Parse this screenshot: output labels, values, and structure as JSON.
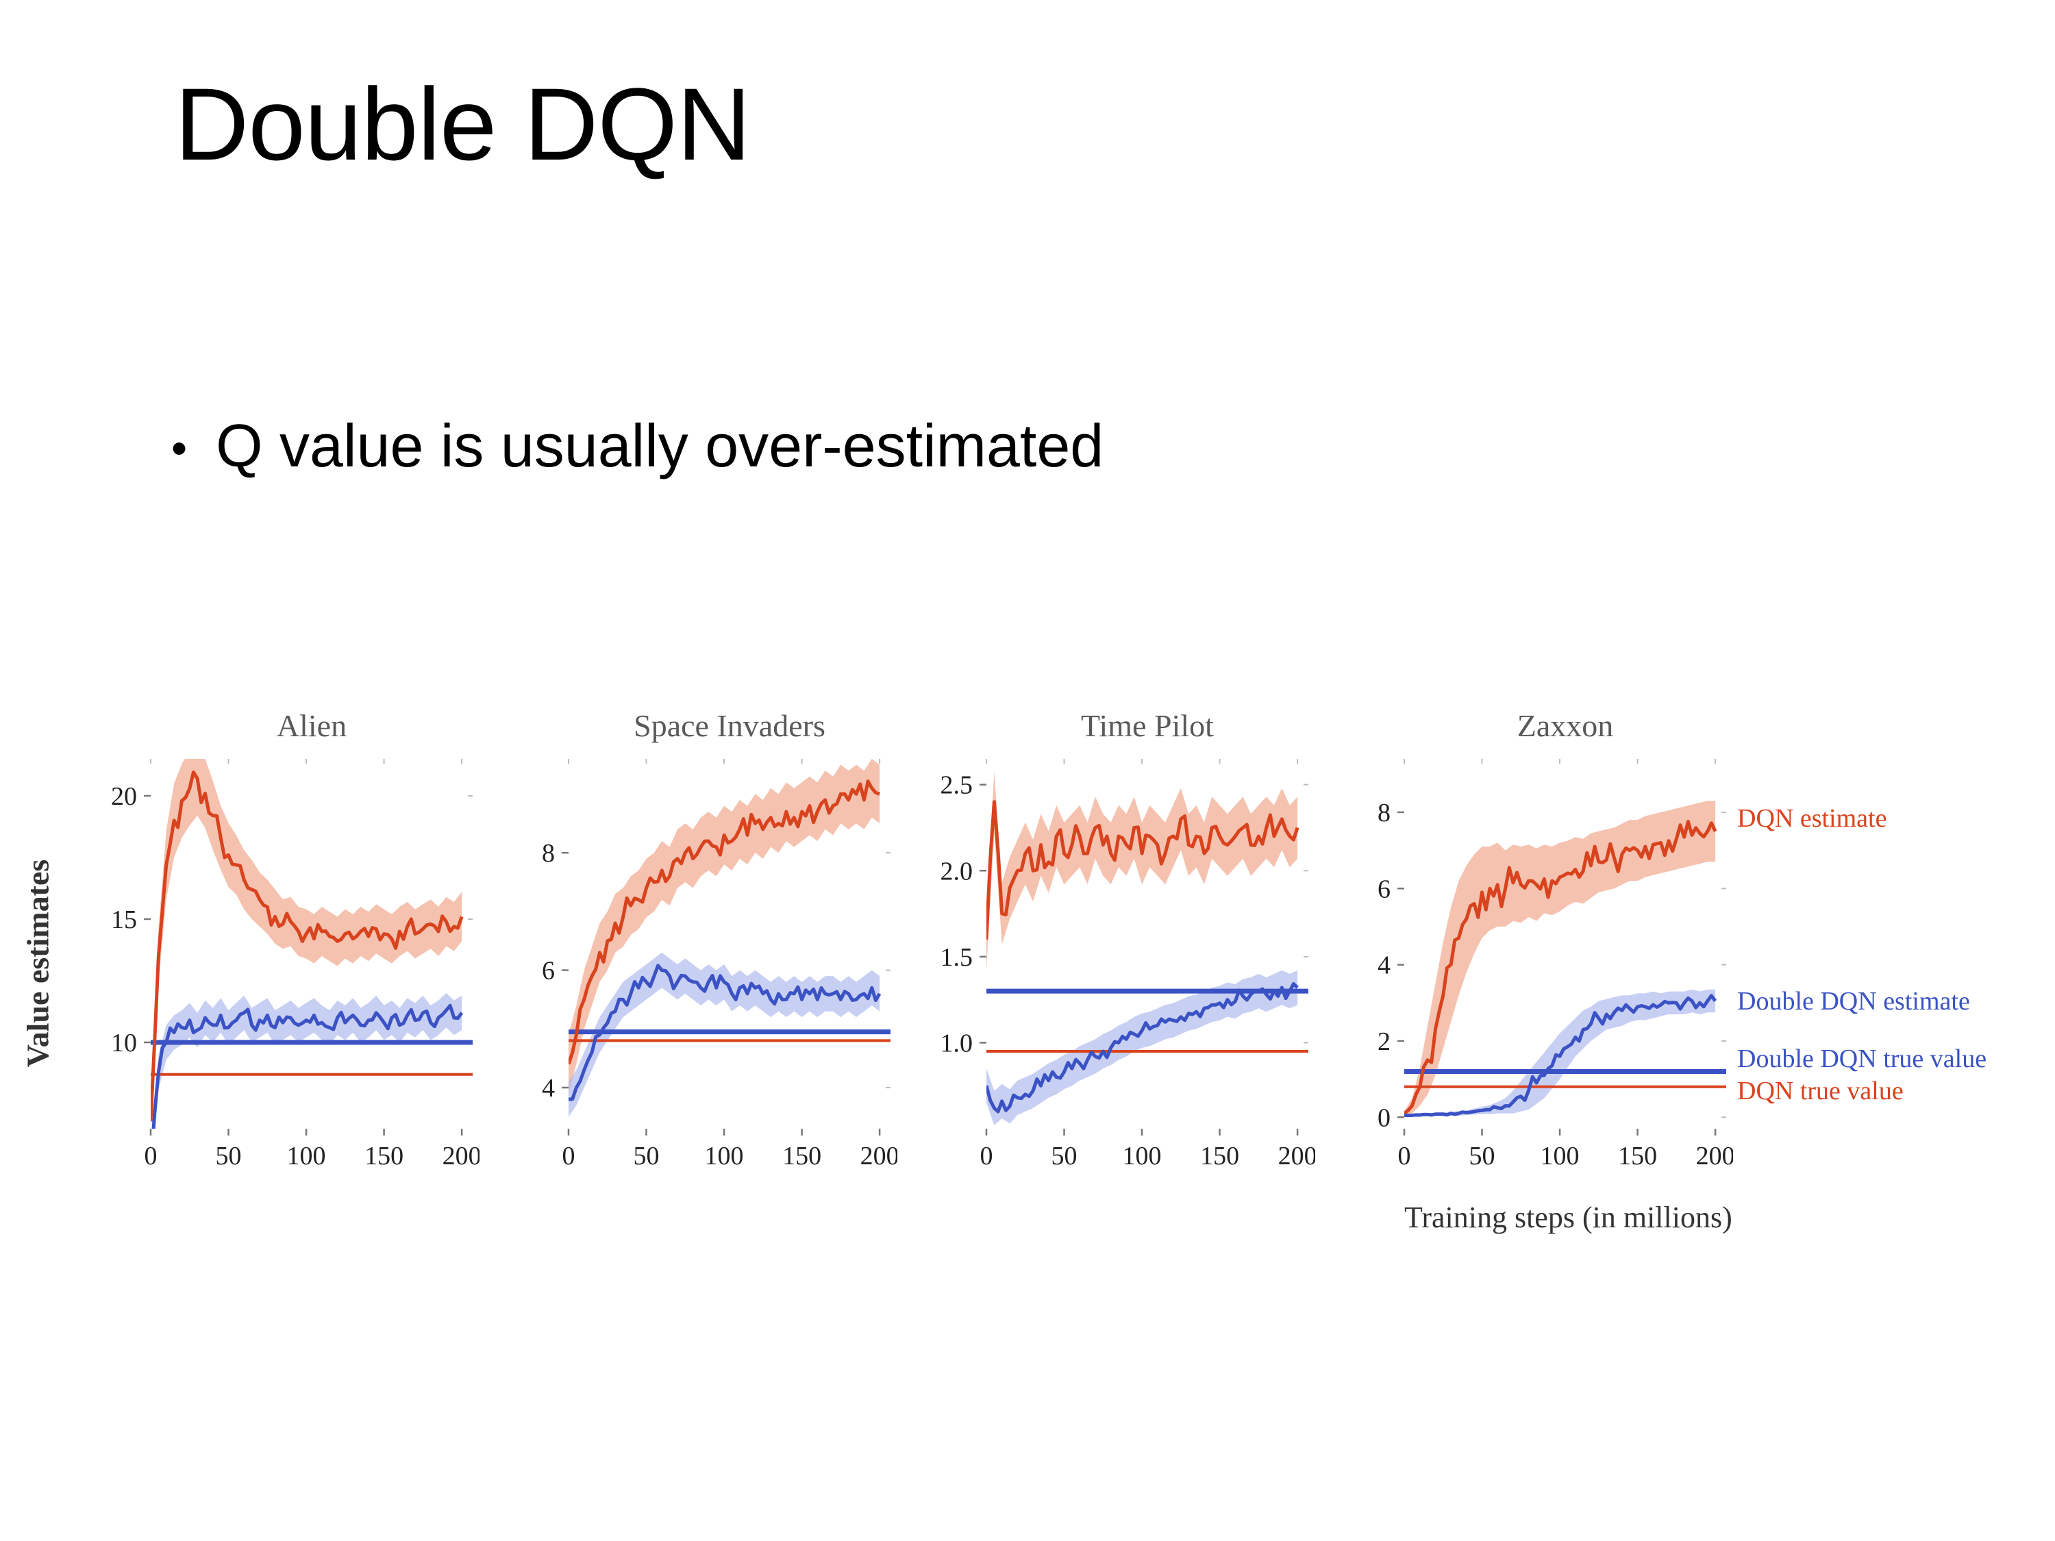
{
  "slide": {
    "title": "Double DQN",
    "bullet_marker": "•",
    "bullet": "Q value is usually over-estimated"
  },
  "figure": {
    "ylabel": "Value estimates",
    "xlabel": "Training steps (in millions)",
    "colors": {
      "dqn": "#d8431e",
      "dqn_band": "#f0a184",
      "ddqn": "#3a52c4",
      "ddqn_band": "#a9b6ec"
    },
    "legend": [
      {
        "label": "DQN estimate",
        "color_key": "dqn",
        "align_value": 7.8
      },
      {
        "label": "Double DQN estimate",
        "color_key": "ddqn",
        "align_value": 3.0
      },
      {
        "label": "Double DQN true value",
        "color_key": "ddqn",
        "align_value": 1.5
      },
      {
        "label": "DQN true value",
        "color_key": "dqn",
        "align_value": 0.65
      }
    ]
  },
  "chart_data": [
    {
      "type": "line",
      "title": "Alien",
      "xlim": [
        0,
        207
      ],
      "ylim": [
        6.5,
        21.5
      ],
      "x_ticks": [
        0,
        50,
        100,
        150,
        200
      ],
      "x_tick_labels": [
        "0",
        "50",
        "100",
        "150",
        "200"
      ],
      "y_ticks": [
        10,
        15,
        20
      ],
      "y_tick_labels": [
        "10",
        "15",
        "20"
      ],
      "x": [
        0,
        5,
        10,
        15,
        20,
        25,
        30,
        35,
        40,
        45,
        50,
        55,
        60,
        65,
        70,
        75,
        80,
        85,
        90,
        95,
        100,
        105,
        110,
        115,
        120,
        125,
        130,
        135,
        140,
        145,
        150,
        155,
        160,
        165,
        170,
        175,
        180,
        185,
        190,
        195,
        200
      ],
      "series": [
        {
          "name": "DQN estimate",
          "color_key": "dqn",
          "y": [
            6.8,
            13.5,
            17.2,
            19.0,
            19.8,
            20.3,
            20.7,
            20.1,
            19.2,
            18.3,
            17.6,
            17.2,
            16.6,
            16.2,
            15.8,
            15.5,
            15.1,
            14.8,
            14.9,
            14.5,
            14.4,
            14.2,
            14.5,
            14.3,
            14.1,
            14.4,
            14.2,
            14.5,
            14.3,
            14.6,
            14.4,
            14.2,
            14.5,
            14.7,
            14.4,
            14.6,
            14.8,
            14.5,
            14.9,
            14.7,
            15.1
          ],
          "spread": [
            0.4,
            1.1,
            1.4,
            1.5,
            1.5,
            1.5,
            1.5,
            1.4,
            1.4,
            1.3,
            1.3,
            1.2,
            1.2,
            1.2,
            1.1,
            1.1,
            1.1,
            1.0,
            1.0,
            1.0,
            1.0,
            1.0,
            1.0,
            1.0,
            1.0,
            1.0,
            1.0,
            1.0,
            1.0,
            1.0,
            1.0,
            1.0,
            1.0,
            1.0,
            1.0,
            1.0,
            1.0,
            1.0,
            1.0,
            1.0,
            1.0
          ]
        },
        {
          "name": "Double DQN estimate",
          "color_key": "ddqn",
          "y": [
            4.8,
            8.8,
            10.0,
            10.4,
            10.6,
            10.9,
            10.5,
            11.0,
            10.7,
            11.1,
            10.6,
            10.9,
            11.2,
            10.7,
            10.9,
            11.1,
            10.6,
            10.8,
            11.0,
            10.7,
            10.9,
            11.1,
            10.8,
            10.6,
            11.0,
            10.8,
            11.1,
            10.7,
            10.9,
            11.2,
            10.8,
            11.0,
            10.7,
            11.1,
            10.9,
            11.2,
            10.8,
            11.0,
            11.3,
            11.0,
            11.2
          ],
          "spread": 0.7
        }
      ],
      "true_values": [
        {
          "name": "Double DQN true value",
          "color_key": "ddqn",
          "value": 10.0,
          "width": 7
        },
        {
          "name": "DQN true value",
          "color_key": "dqn",
          "value": 8.7,
          "width": 4
        }
      ]
    },
    {
      "type": "line",
      "title": "Space Invaders",
      "xlim": [
        0,
        207
      ],
      "ylim": [
        3.3,
        9.6
      ],
      "x_ticks": [
        0,
        50,
        100,
        150,
        200
      ],
      "x_tick_labels": [
        "0",
        "50",
        "100",
        "150",
        "200"
      ],
      "y_ticks": [
        4,
        6,
        8
      ],
      "y_tick_labels": [
        "4",
        "6",
        "8"
      ],
      "x": [
        0,
        5,
        10,
        15,
        20,
        25,
        30,
        35,
        40,
        45,
        50,
        55,
        60,
        65,
        70,
        75,
        80,
        85,
        90,
        95,
        100,
        105,
        110,
        115,
        120,
        125,
        130,
        135,
        140,
        145,
        150,
        155,
        160,
        165,
        170,
        175,
        180,
        185,
        190,
        195,
        200
      ],
      "series": [
        {
          "name": "DQN estimate",
          "color_key": "dqn",
          "y": [
            4.4,
            4.9,
            5.5,
            5.9,
            6.3,
            6.5,
            6.8,
            6.9,
            7.1,
            7.2,
            7.4,
            7.5,
            7.7,
            7.6,
            7.9,
            8.0,
            7.9,
            8.1,
            8.2,
            8.1,
            8.3,
            8.2,
            8.4,
            8.3,
            8.5,
            8.4,
            8.6,
            8.5,
            8.7,
            8.6,
            8.7,
            8.8,
            8.7,
            8.9,
            8.8,
            9.0,
            8.9,
            9.0,
            8.9,
            9.1,
            9.0
          ],
          "spread": 0.5
        },
        {
          "name": "Double DQN estimate",
          "color_key": "ddqn",
          "y": [
            3.8,
            4.0,
            4.3,
            4.6,
            4.9,
            5.1,
            5.3,
            5.5,
            5.6,
            5.7,
            5.8,
            5.9,
            6.0,
            5.9,
            5.8,
            5.9,
            5.8,
            5.7,
            5.8,
            5.7,
            5.8,
            5.6,
            5.7,
            5.6,
            5.7,
            5.6,
            5.5,
            5.6,
            5.5,
            5.6,
            5.5,
            5.6,
            5.5,
            5.6,
            5.6,
            5.5,
            5.6,
            5.5,
            5.6,
            5.7,
            5.6
          ],
          "spread": 0.3
        }
      ],
      "true_values": [
        {
          "name": "Double DQN true value",
          "color_key": "ddqn",
          "value": 4.95,
          "width": 7
        },
        {
          "name": "DQN true value",
          "color_key": "dqn",
          "value": 4.8,
          "width": 4
        }
      ]
    },
    {
      "type": "line",
      "title": "Time Pilot",
      "xlim": [
        0,
        207
      ],
      "ylim": [
        0.5,
        2.65
      ],
      "x_ticks": [
        0,
        50,
        100,
        150,
        200
      ],
      "x_tick_labels": [
        "0",
        "50",
        "100",
        "150",
        "200"
      ],
      "y_ticks": [
        1.0,
        1.5,
        2.0,
        2.5
      ],
      "y_tick_labels": [
        "1.0",
        "1.5",
        "2.0",
        "2.5"
      ],
      "x": [
        0,
        5,
        10,
        15,
        20,
        25,
        30,
        35,
        40,
        45,
        50,
        55,
        60,
        65,
        70,
        75,
        80,
        85,
        90,
        95,
        100,
        105,
        110,
        115,
        120,
        125,
        130,
        135,
        140,
        145,
        150,
        155,
        160,
        165,
        170,
        175,
        180,
        185,
        190,
        195,
        200
      ],
      "series": [
        {
          "name": "DQN estimate",
          "color_key": "dqn",
          "y": [
            1.6,
            2.4,
            1.75,
            1.9,
            2.0,
            2.1,
            2.0,
            2.15,
            2.05,
            2.2,
            2.1,
            2.15,
            2.2,
            2.1,
            2.25,
            2.15,
            2.1,
            2.2,
            2.15,
            2.25,
            2.1,
            2.2,
            2.15,
            2.1,
            2.2,
            2.3,
            2.15,
            2.2,
            2.1,
            2.25,
            2.2,
            2.15,
            2.2,
            2.25,
            2.15,
            2.2,
            2.25,
            2.2,
            2.3,
            2.2,
            2.25
          ],
          "spread": 0.18
        },
        {
          "name": "Double DQN estimate",
          "color_key": "ddqn",
          "y": [
            0.75,
            0.62,
            0.66,
            0.63,
            0.68,
            0.7,
            0.72,
            0.75,
            0.78,
            0.8,
            0.83,
            0.85,
            0.88,
            0.9,
            0.92,
            0.95,
            0.97,
            1.0,
            1.02,
            1.05,
            1.07,
            1.08,
            1.1,
            1.12,
            1.13,
            1.15,
            1.17,
            1.18,
            1.2,
            1.22,
            1.23,
            1.25,
            1.24,
            1.27,
            1.28,
            1.3,
            1.28,
            1.3,
            1.32,
            1.3,
            1.32
          ],
          "spread": 0.1
        }
      ],
      "true_values": [
        {
          "name": "Double DQN true value",
          "color_key": "ddqn",
          "value": 1.3,
          "width": 7
        },
        {
          "name": "DQN true value",
          "color_key": "dqn",
          "value": 0.95,
          "width": 4
        }
      ]
    },
    {
      "type": "line",
      "title": "Zaxxon",
      "xlim": [
        0,
        207
      ],
      "ylim": [
        -0.3,
        9.4
      ],
      "x_ticks": [
        0,
        50,
        100,
        150,
        200
      ],
      "x_tick_labels": [
        "0",
        "50",
        "100",
        "150",
        "200"
      ],
      "y_ticks": [
        0,
        2,
        4,
        6,
        8
      ],
      "y_tick_labels": [
        "0",
        "2",
        "4",
        "6",
        "8"
      ],
      "x": [
        0,
        5,
        10,
        15,
        20,
        25,
        30,
        35,
        40,
        45,
        50,
        55,
        60,
        65,
        70,
        75,
        80,
        85,
        90,
        95,
        100,
        105,
        110,
        115,
        120,
        125,
        130,
        135,
        140,
        145,
        150,
        155,
        160,
        165,
        170,
        175,
        180,
        185,
        190,
        195,
        200
      ],
      "series": [
        {
          "name": "DQN estimate",
          "color_key": "dqn",
          "y": [
            0.1,
            0.3,
            0.8,
            1.5,
            2.3,
            3.2,
            4.0,
            4.7,
            5.2,
            5.6,
            5.9,
            6.0,
            6.1,
            6.0,
            6.15,
            6.1,
            6.2,
            6.1,
            6.25,
            6.2,
            6.3,
            6.4,
            6.5,
            6.45,
            6.6,
            6.7,
            6.75,
            6.8,
            6.9,
            7.0,
            7.0,
            7.1,
            7.15,
            7.2,
            7.25,
            7.3,
            7.35,
            7.4,
            7.45,
            7.5,
            7.5
          ],
          "spread": [
            0.05,
            0.2,
            0.5,
            0.9,
            1.2,
            1.4,
            1.5,
            1.5,
            1.4,
            1.3,
            1.2,
            1.1,
            1.1,
            1.0,
            1.0,
            1.0,
            0.95,
            0.95,
            0.9,
            0.9,
            0.9,
            0.85,
            0.85,
            0.85,
            0.85,
            0.8,
            0.8,
            0.8,
            0.8,
            0.8,
            0.8,
            0.8,
            0.8,
            0.8,
            0.8,
            0.8,
            0.8,
            0.8,
            0.8,
            0.8,
            0.8
          ]
        },
        {
          "name": "Double DQN estimate",
          "color_key": "ddqn",
          "y": [
            0.05,
            0.05,
            0.06,
            0.07,
            0.08,
            0.08,
            0.1,
            0.1,
            0.12,
            0.15,
            0.18,
            0.2,
            0.25,
            0.3,
            0.4,
            0.55,
            0.7,
            0.9,
            1.1,
            1.35,
            1.6,
            1.85,
            2.1,
            2.3,
            2.45,
            2.6,
            2.7,
            2.75,
            2.8,
            2.85,
            2.9,
            2.9,
            2.95,
            2.95,
            3.0,
            3.0,
            3.0,
            3.05,
            3.0,
            3.05,
            3.05
          ],
          "spread": [
            0.03,
            0.03,
            0.03,
            0.04,
            0.04,
            0.05,
            0.05,
            0.06,
            0.06,
            0.08,
            0.1,
            0.12,
            0.15,
            0.2,
            0.3,
            0.4,
            0.5,
            0.55,
            0.6,
            0.6,
            0.6,
            0.55,
            0.5,
            0.5,
            0.45,
            0.45,
            0.4,
            0.4,
            0.4,
            0.35,
            0.35,
            0.35,
            0.35,
            0.3,
            0.3,
            0.3,
            0.3,
            0.3,
            0.3,
            0.3,
            0.3
          ]
        }
      ],
      "true_values": [
        {
          "name": "Double DQN true value",
          "color_key": "ddqn",
          "value": 1.2,
          "width": 7
        },
        {
          "name": "DQN true value",
          "color_key": "dqn",
          "value": 0.8,
          "width": 4
        }
      ]
    }
  ]
}
